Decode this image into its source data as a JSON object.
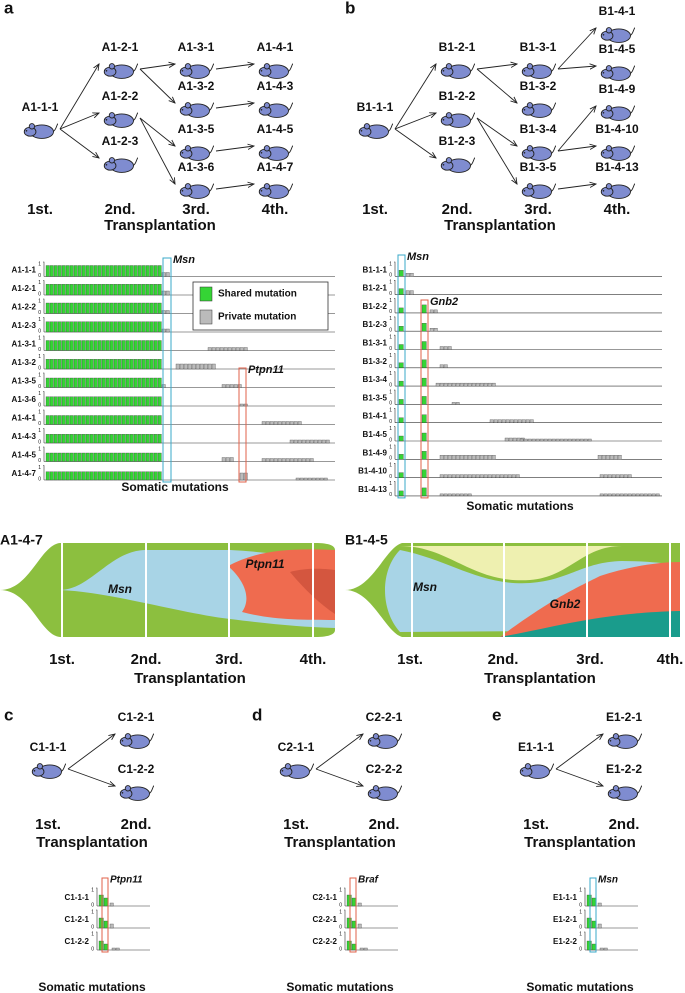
{
  "panel_a": {
    "letter": "a",
    "nodes": [
      "A1-1-1",
      "A1-2-1",
      "A1-2-2",
      "A1-2-3",
      "A1-3-1",
      "A1-3-2",
      "A1-3-5",
      "A1-3-6",
      "A1-4-1",
      "A1-4-3",
      "A1-4-5",
      "A1-4-7"
    ],
    "generations": [
      "1st.",
      "2nd.",
      "3rd.",
      "4th."
    ],
    "axis_title": "Transplantation",
    "track": {
      "rows": [
        "A1-1-1",
        "A1-2-1",
        "A1-2-2",
        "A1-2-3",
        "A1-3-1",
        "A1-3-2",
        "A1-3-5",
        "A1-3-6",
        "A1-4-1",
        "A1-4-3",
        "A1-4-5",
        "A1-4-7"
      ],
      "axis_ticks": [
        "1",
        "0"
      ],
      "genes": [
        "Msn",
        "Ptpn11"
      ],
      "legend": [
        "Shared mutation",
        "Private mutation"
      ],
      "xlabel": "Somatic mutations"
    },
    "fish": {
      "title": "A1-4-7",
      "labels": [
        "Msn",
        "Ptpn11"
      ],
      "generations": [
        "1st.",
        "2nd.",
        "3rd.",
        "4th."
      ],
      "axis_title": "Transplantation"
    }
  },
  "panel_b": {
    "letter": "b",
    "nodes": [
      "B1-1-1",
      "B1-2-1",
      "B1-2-2",
      "B1-2-3",
      "B1-3-1",
      "B1-3-2",
      "B1-3-4",
      "B1-3-5",
      "B1-4-1",
      "B1-4-5",
      "B1-4-9",
      "B1-4-10",
      "B1-4-13"
    ],
    "generations": [
      "1st.",
      "2nd.",
      "3rd.",
      "4th."
    ],
    "axis_title": "Transplantation",
    "track": {
      "rows": [
        "B1-1-1",
        "B1-2-1",
        "B1-2-2",
        "B1-2-3",
        "B1-3-1",
        "B1-3-2",
        "B1-3-4",
        "B1-3-5",
        "B1-4-1",
        "B1-4-5",
        "B1-4-9",
        "B1-4-10",
        "B1-4-13"
      ],
      "axis_ticks": [
        "1",
        "0"
      ],
      "genes": [
        "Msn",
        "Gnb2"
      ],
      "xlabel": "Somatic mutations"
    },
    "fish": {
      "title": "B1-4-5",
      "labels": [
        "Msn",
        "Gnb2"
      ],
      "generations": [
        "1st.",
        "2nd.",
        "3rd.",
        "4th."
      ],
      "axis_title": "Transplantation"
    }
  },
  "panel_c": {
    "letter": "c",
    "nodes": [
      "C1-1-1",
      "C1-2-1",
      "C1-2-2"
    ],
    "generations": [
      "1st.",
      "2nd."
    ],
    "axis_title": "Transplantation",
    "track": {
      "rows": [
        "C1-1-1",
        "C1-2-1",
        "C1-2-2"
      ],
      "axis_ticks": [
        "1",
        "0"
      ],
      "genes": [
        "Ptpn11"
      ],
      "xlabel": "Somatic mutations"
    }
  },
  "panel_d": {
    "letter": "d",
    "nodes": [
      "C2-1-1",
      "C2-2-1",
      "C2-2-2"
    ],
    "generations": [
      "1st.",
      "2nd."
    ],
    "axis_title": "Transplantation",
    "track": {
      "rows": [
        "C2-1-1",
        "C2-2-1",
        "C2-2-2"
      ],
      "axis_ticks": [
        "1",
        "0"
      ],
      "genes": [
        "Braf"
      ],
      "xlabel": "Somatic mutations"
    }
  },
  "panel_e": {
    "letter": "e",
    "nodes": [
      "E1-1-1",
      "E1-2-1",
      "E1-2-2"
    ],
    "generations": [
      "1st.",
      "2nd."
    ],
    "axis_title": "Transplantation",
    "track": {
      "rows": [
        "E1-1-1",
        "E1-2-1",
        "E1-2-2"
      ],
      "axis_ticks": [
        "1",
        "0"
      ],
      "genes": [
        "Msn"
      ],
      "xlabel": "Somatic mutations"
    }
  }
}
